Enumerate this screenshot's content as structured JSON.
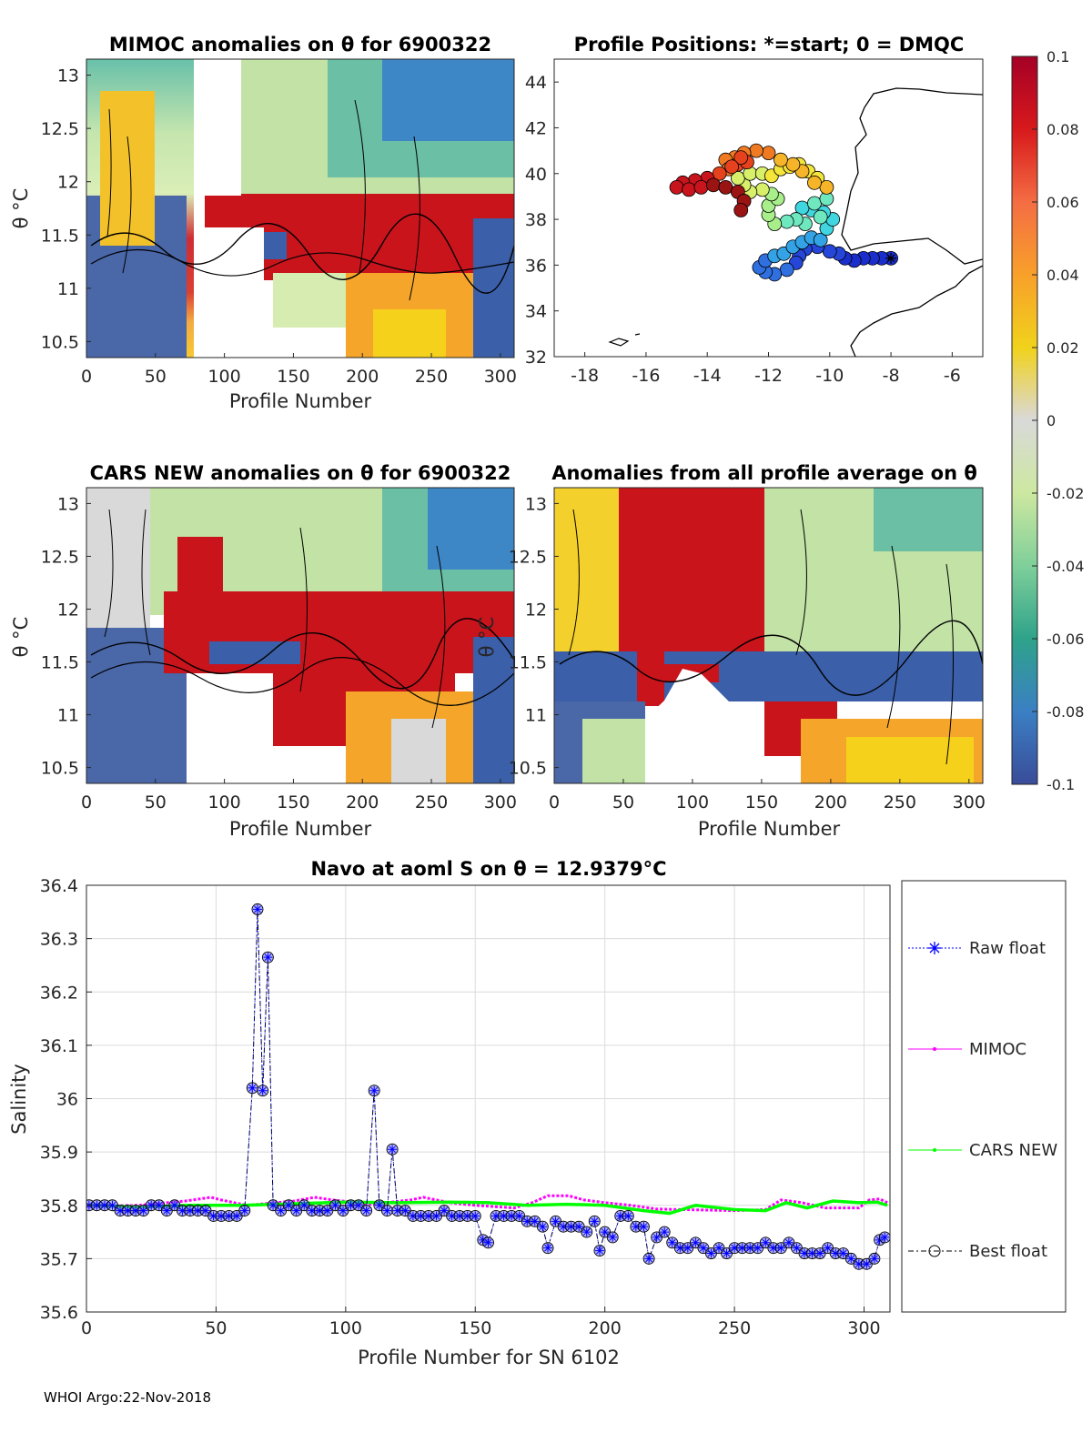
{
  "footer": "WHOI Argo:22-Nov-2018",
  "panels": {
    "mimoc": {
      "title": "MIMOC anomalies on θ  for 6900322",
      "ylabel": "θ °C",
      "xlabel": "Profile Number",
      "xticks": [
        "0",
        "50",
        "100",
        "150",
        "200",
        "250",
        "300"
      ],
      "yticks": [
        "13",
        "12.5",
        "12",
        "11.5",
        "11",
        "10.5"
      ]
    },
    "map": {
      "title": "Profile Positions: *=start; 0 = DMQC",
      "xticks": [
        "-18",
        "-16",
        "-14",
        "-12",
        "-10",
        "-8",
        "-6"
      ],
      "yticks": [
        "44",
        "42",
        "40",
        "38",
        "36",
        "34",
        "32"
      ]
    },
    "cars": {
      "title": "CARS NEW anomalies on θ for 6900322",
      "ylabel": "θ °C",
      "xlabel": "Profile Number",
      "xticks": [
        "0",
        "50",
        "100",
        "150",
        "200",
        "250",
        "300"
      ],
      "yticks": [
        "13",
        "12.5",
        "12",
        "11.5",
        "11",
        "10.5"
      ]
    },
    "avg": {
      "title": "Anomalies from all profile average on θ",
      "ylabel": "θ °C",
      "xlabel": "Profile Number",
      "xticks": [
        "0",
        "50",
        "100",
        "150",
        "200",
        "250",
        "300"
      ],
      "yticks": [
        "13",
        "12.5",
        "12",
        "11.5",
        "11",
        "10.5"
      ]
    },
    "colorbar": {
      "ticks": [
        "0.1",
        "0.08",
        "0.06",
        "0.04",
        "0.02",
        "0",
        "-0.02",
        "-0.04",
        "-0.06",
        "-0.08",
        "-0.1"
      ]
    }
  },
  "colors": {
    "raw": "#0000ff",
    "mimoc": "#ff00ff",
    "cars": "#00ff00",
    "best": "#000000"
  },
  "legend": {
    "raw": "Raw float",
    "mimoc": "MIMOC",
    "cars": "CARS NEW",
    "best": "Best float"
  },
  "chart_data": [
    {
      "type": "heatmap",
      "title": "MIMOC anomalies on θ  for 6900322",
      "xlabel": "Profile Number",
      "ylabel": "θ °C",
      "xlim": [
        0,
        310
      ],
      "ylim": [
        10.35,
        13.15
      ],
      "clim": [
        -0.1,
        0.1
      ]
    },
    {
      "type": "scatter",
      "title": "Profile Positions: *=start; 0 = DMQC",
      "xlim": [
        -19,
        -5
      ],
      "ylim": [
        32,
        45
      ],
      "track": [
        [
          -8.0,
          36.3
        ],
        [
          -8.3,
          36.3
        ],
        [
          -8.6,
          36.3
        ],
        [
          -8.9,
          36.3
        ],
        [
          -9.2,
          36.2
        ],
        [
          -9.5,
          36.3
        ],
        [
          -9.7,
          36.5
        ],
        [
          -10.0,
          36.6
        ],
        [
          -10.4,
          36.8
        ],
        [
          -10.8,
          36.7
        ],
        [
          -11.0,
          36.4
        ],
        [
          -11.1,
          36.1
        ],
        [
          -11.4,
          35.8
        ],
        [
          -11.8,
          35.6
        ],
        [
          -12.1,
          35.7
        ],
        [
          -12.3,
          35.9
        ],
        [
          -12.1,
          36.2
        ],
        [
          -11.8,
          36.4
        ],
        [
          -11.5,
          36.5
        ],
        [
          -11.2,
          36.8
        ],
        [
          -10.9,
          37.0
        ],
        [
          -10.6,
          37.2
        ],
        [
          -10.3,
          37.1
        ],
        [
          -10.1,
          37.6
        ],
        [
          -9.9,
          38.0
        ],
        [
          -10.2,
          38.3
        ],
        [
          -10.6,
          38.4
        ],
        [
          -10.9,
          38.5
        ],
        [
          -10.5,
          38.7
        ],
        [
          -10.1,
          38.9
        ],
        [
          -10.3,
          38.1
        ],
        [
          -10.8,
          37.8
        ],
        [
          -11.1,
          38.0
        ],
        [
          -11.4,
          37.9
        ],
        [
          -11.8,
          37.8
        ],
        [
          -12.0,
          38.2
        ],
        [
          -12.0,
          38.6
        ],
        [
          -11.7,
          38.9
        ],
        [
          -11.9,
          39.1
        ],
        [
          -12.2,
          39.3
        ],
        [
          -12.6,
          39.2
        ],
        [
          -12.8,
          39.5
        ],
        [
          -13.0,
          39.8
        ],
        [
          -12.6,
          40.0
        ],
        [
          -12.2,
          40.0
        ],
        [
          -11.9,
          39.9
        ],
        [
          -11.6,
          40.2
        ],
        [
          -11.3,
          40.3
        ],
        [
          -11.0,
          40.4
        ],
        [
          -10.7,
          40.1
        ],
        [
          -10.4,
          39.8
        ],
        [
          -10.1,
          39.4
        ],
        [
          -10.5,
          39.6
        ],
        [
          -10.9,
          40.1
        ],
        [
          -11.2,
          40.4
        ],
        [
          -11.6,
          40.6
        ],
        [
          -12.0,
          40.9
        ],
        [
          -12.4,
          41.0
        ],
        [
          -12.8,
          40.9
        ],
        [
          -13.1,
          40.7
        ],
        [
          -13.4,
          40.6
        ],
        [
          -13.3,
          40.2
        ],
        [
          -13.0,
          40.4
        ],
        [
          -12.7,
          40.5
        ],
        [
          -12.9,
          40.7
        ],
        [
          -13.2,
          40.3
        ],
        [
          -13.6,
          40.0
        ],
        [
          -14.0,
          39.8
        ],
        [
          -14.4,
          39.7
        ],
        [
          -14.8,
          39.6
        ],
        [
          -15.0,
          39.4
        ],
        [
          -14.6,
          39.3
        ],
        [
          -14.2,
          39.4
        ],
        [
          -13.8,
          39.5
        ],
        [
          -13.4,
          39.4
        ],
        [
          -13.0,
          39.2
        ],
        [
          -12.8,
          38.8
        ],
        [
          -12.9,
          38.4
        ]
      ]
    },
    {
      "type": "heatmap",
      "title": "CARS NEW anomalies on θ for 6900322",
      "xlabel": "Profile Number",
      "ylabel": "θ °C",
      "xlim": [
        0,
        310
      ],
      "ylim": [
        10.35,
        13.15
      ],
      "clim": [
        -0.1,
        0.1
      ]
    },
    {
      "type": "heatmap",
      "title": "Anomalies from all profile average on θ",
      "xlabel": "Profile Number",
      "ylabel": "θ °C",
      "xlim": [
        0,
        310
      ],
      "ylim": [
        10.35,
        13.15
      ],
      "clim": [
        -0.1,
        0.1
      ]
    },
    {
      "type": "line",
      "title": "Navo at aoml S on θ = 12.9379°C",
      "xlabel": "Profile Number for SN 6102",
      "ylabel": "Salinity",
      "xlim": [
        0,
        310
      ],
      "ylim": [
        35.6,
        36.4
      ],
      "xticks": [
        "0",
        "50",
        "100",
        "150",
        "200",
        "250",
        "300"
      ],
      "yticks": [
        "36.4",
        "36.3",
        "36.2",
        "36.1",
        "36",
        "35.9",
        "35.8",
        "35.7",
        "35.6"
      ],
      "series": [
        {
          "name": "Best float",
          "points": [
            [
              1,
              35.8
            ],
            [
              4,
              35.8
            ],
            [
              7,
              35.8
            ],
            [
              10,
              35.8
            ],
            [
              13,
              35.79
            ],
            [
              16,
              35.79
            ],
            [
              19,
              35.79
            ],
            [
              22,
              35.79
            ],
            [
              25,
              35.8
            ],
            [
              28,
              35.8
            ],
            [
              31,
              35.79
            ],
            [
              34,
              35.8
            ],
            [
              37,
              35.79
            ],
            [
              40,
              35.79
            ],
            [
              43,
              35.79
            ],
            [
              46,
              35.79
            ],
            [
              49,
              35.78
            ],
            [
              52,
              35.78
            ],
            [
              55,
              35.78
            ],
            [
              58,
              35.78
            ],
            [
              61,
              35.79
            ],
            [
              64,
              36.02
            ],
            [
              66,
              36.355
            ],
            [
              68,
              36.015
            ],
            [
              70,
              36.265
            ],
            [
              72,
              35.8
            ],
            [
              75,
              35.79
            ],
            [
              78,
              35.8
            ],
            [
              81,
              35.79
            ],
            [
              84,
              35.8
            ],
            [
              87,
              35.79
            ],
            [
              90,
              35.79
            ],
            [
              93,
              35.79
            ],
            [
              96,
              35.8
            ],
            [
              99,
              35.79
            ],
            [
              102,
              35.8
            ],
            [
              105,
              35.8
            ],
            [
              108,
              35.79
            ],
            [
              111,
              36.015
            ],
            [
              113,
              35.8
            ],
            [
              116,
              35.79
            ],
            [
              118,
              35.905
            ],
            [
              120,
              35.79
            ],
            [
              123,
              35.79
            ],
            [
              126,
              35.78
            ],
            [
              129,
              35.78
            ],
            [
              132,
              35.78
            ],
            [
              135,
              35.78
            ],
            [
              138,
              35.79
            ],
            [
              141,
              35.78
            ],
            [
              144,
              35.78
            ],
            [
              147,
              35.78
            ],
            [
              150,
              35.78
            ],
            [
              153,
              35.735
            ],
            [
              155,
              35.73
            ],
            [
              158,
              35.78
            ],
            [
              161,
              35.78
            ],
            [
              164,
              35.78
            ],
            [
              167,
              35.78
            ],
            [
              170,
              35.77
            ],
            [
              173,
              35.77
            ],
            [
              176,
              35.76
            ],
            [
              178,
              35.72
            ],
            [
              181,
              35.77
            ],
            [
              184,
              35.76
            ],
            [
              187,
              35.76
            ],
            [
              190,
              35.76
            ],
            [
              193,
              35.75
            ],
            [
              196,
              35.77
            ],
            [
              198,
              35.715
            ],
            [
              200,
              35.75
            ],
            [
              203,
              35.74
            ],
            [
              206,
              35.78
            ],
            [
              209,
              35.78
            ],
            [
              212,
              35.76
            ],
            [
              215,
              35.76
            ],
            [
              217,
              35.7
            ],
            [
              220,
              35.74
            ],
            [
              223,
              35.75
            ],
            [
              226,
              35.73
            ],
            [
              229,
              35.72
            ],
            [
              232,
              35.72
            ],
            [
              235,
              35.73
            ],
            [
              238,
              35.72
            ],
            [
              241,
              35.71
            ],
            [
              244,
              35.72
            ],
            [
              247,
              35.71
            ],
            [
              250,
              35.72
            ],
            [
              253,
              35.72
            ],
            [
              256,
              35.72
            ],
            [
              259,
              35.72
            ],
            [
              262,
              35.73
            ],
            [
              265,
              35.72
            ],
            [
              268,
              35.72
            ],
            [
              271,
              35.73
            ],
            [
              274,
              35.72
            ],
            [
              277,
              35.71
            ],
            [
              280,
              35.71
            ],
            [
              283,
              35.71
            ],
            [
              286,
              35.72
            ],
            [
              289,
              35.71
            ],
            [
              292,
              35.71
            ],
            [
              295,
              35.7
            ],
            [
              298,
              35.69
            ],
            [
              301,
              35.69
            ],
            [
              304,
              35.7
            ],
            [
              306,
              35.735
            ],
            [
              308,
              35.74
            ]
          ]
        },
        {
          "name": "MIMOC",
          "points": [
            [
              1,
              35.798
            ],
            [
              20,
              35.8
            ],
            [
              38,
              35.808
            ],
            [
              48,
              35.815
            ],
            [
              52,
              35.81
            ],
            [
              62,
              35.8
            ],
            [
              80,
              35.808
            ],
            [
              88,
              35.815
            ],
            [
              95,
              35.81
            ],
            [
              110,
              35.802
            ],
            [
              125,
              35.81
            ],
            [
              130,
              35.815
            ],
            [
              140,
              35.805
            ],
            [
              150,
              35.8
            ],
            [
              165,
              35.795
            ],
            [
              172,
              35.805
            ],
            [
              178,
              35.818
            ],
            [
              186,
              35.818
            ],
            [
              192,
              35.81
            ],
            [
              200,
              35.805
            ],
            [
              210,
              35.8
            ],
            [
              220,
              35.793
            ],
            [
              230,
              35.792
            ],
            [
              250,
              35.79
            ],
            [
              262,
              35.792
            ],
            [
              268,
              35.81
            ],
            [
              276,
              35.805
            ],
            [
              285,
              35.795
            ],
            [
              298,
              35.795
            ],
            [
              302,
              35.81
            ],
            [
              306,
              35.812
            ],
            [
              309,
              35.805
            ]
          ]
        },
        {
          "name": "CARS NEW",
          "points": [
            [
              1,
              35.8
            ],
            [
              20,
              35.797
            ],
            [
              40,
              35.8
            ],
            [
              60,
              35.8
            ],
            [
              80,
              35.803
            ],
            [
              100,
              35.806
            ],
            [
              120,
              35.805
            ],
            [
              140,
              35.806
            ],
            [
              155,
              35.805
            ],
            [
              170,
              35.8
            ],
            [
              185,
              35.802
            ],
            [
              200,
              35.8
            ],
            [
              215,
              35.79
            ],
            [
              225,
              35.785
            ],
            [
              235,
              35.8
            ],
            [
              250,
              35.792
            ],
            [
              262,
              35.79
            ],
            [
              270,
              35.805
            ],
            [
              278,
              35.795
            ],
            [
              288,
              35.808
            ],
            [
              298,
              35.805
            ],
            [
              305,
              35.806
            ],
            [
              309,
              35.8
            ]
          ]
        }
      ]
    }
  ]
}
